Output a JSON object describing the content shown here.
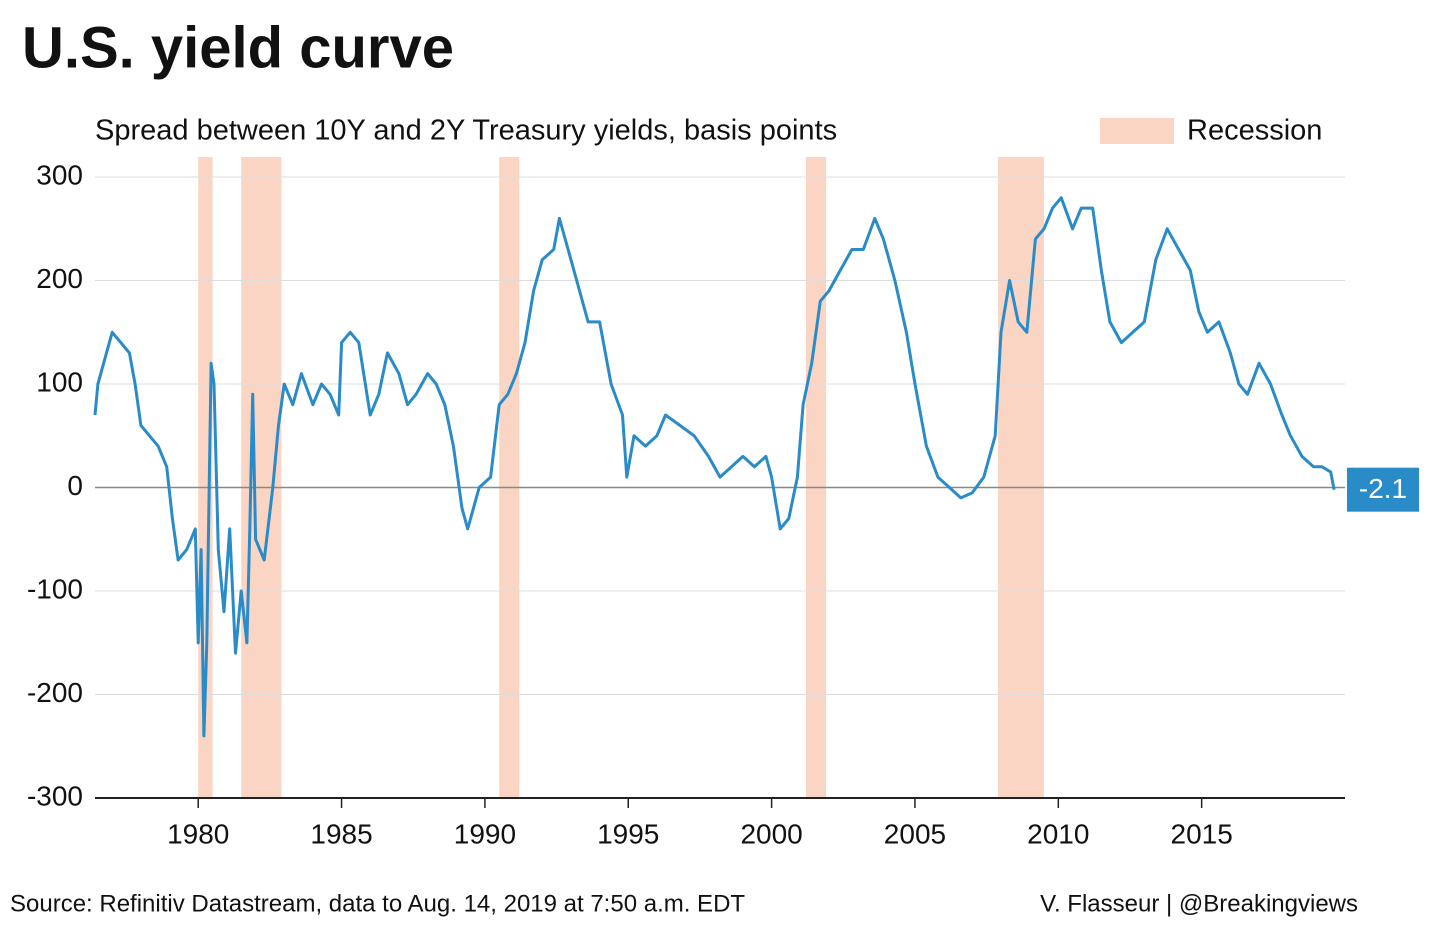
{
  "chart_data": {
    "type": "line",
    "title": "U.S. yield curve",
    "subtitle": "Spread between 10Y and 2Y Treasury yields, basis points",
    "source": "Source: Refinitiv Datastream, data to Aug. 14, 2019 at 7:50 a.m. EDT",
    "credit": "V. Flasseur | @Breakingviews",
    "color": "#2a8bc9",
    "band_label": "Recession",
    "band_color": "#fad5c4",
    "bands": [
      {
        "start": 1980.0,
        "end": 1980.5
      },
      {
        "start": 1981.5,
        "end": 1982.9
      },
      {
        "start": 1990.5,
        "end": 1991.2
      },
      {
        "start": 2001.2,
        "end": 2001.9
      },
      {
        "start": 2007.9,
        "end": 2009.5
      }
    ],
    "xlim": [
      1976.4,
      2020
    ],
    "xticks": [
      1980,
      1985,
      1990,
      1995,
      2000,
      2005,
      2010,
      2015
    ],
    "ylim": [
      -300,
      300
    ],
    "yticks": [
      -300,
      -200,
      -100,
      0,
      100,
      200,
      300
    ],
    "grid": true,
    "x": [
      1976.4,
      1976.5,
      1976.8,
      1977.0,
      1977.3,
      1977.6,
      1977.8,
      1978.0,
      1978.3,
      1978.6,
      1978.9,
      1979.1,
      1979.3,
      1979.6,
      1979.9,
      1980.0,
      1980.1,
      1980.2,
      1980.3,
      1980.45,
      1980.55,
      1980.7,
      1980.9,
      1981.1,
      1981.3,
      1981.5,
      1981.7,
      1981.8,
      1981.9,
      1982.0,
      1982.3,
      1982.6,
      1982.8,
      1983.0,
      1983.3,
      1983.6,
      1984.0,
      1984.3,
      1984.6,
      1984.9,
      1985.0,
      1985.3,
      1985.6,
      1986.0,
      1986.3,
      1986.6,
      1987.0,
      1987.3,
      1987.6,
      1988.0,
      1988.3,
      1988.6,
      1988.9,
      1989.2,
      1989.4,
      1989.8,
      1990.2,
      1990.5,
      1990.8,
      1991.1,
      1991.4,
      1991.7,
      1992.0,
      1992.4,
      1992.6,
      1992.9,
      1993.2,
      1993.6,
      1994.0,
      1994.4,
      1994.8,
      1994.95,
      1995.2,
      1995.6,
      1996.0,
      1996.3,
      1996.8,
      1997.3,
      1997.8,
      1998.2,
      1998.6,
      1999.0,
      1999.4,
      1999.8,
      2000.0,
      2000.3,
      2000.6,
      2000.9,
      2001.1,
      2001.4,
      2001.7,
      2002.0,
      2002.4,
      2002.8,
      2003.2,
      2003.6,
      2003.9,
      2004.3,
      2004.7,
      2005.0,
      2005.4,
      2005.8,
      2006.2,
      2006.6,
      2007.0,
      2007.4,
      2007.8,
      2008.0,
      2008.3,
      2008.6,
      2008.9,
      2009.2,
      2009.5,
      2009.8,
      2010.1,
      2010.5,
      2010.8,
      2011.2,
      2011.5,
      2011.8,
      2012.2,
      2012.6,
      2013.0,
      2013.4,
      2013.8,
      2014.2,
      2014.6,
      2014.9,
      2015.2,
      2015.6,
      2016.0,
      2016.3,
      2016.6,
      2017.0,
      2017.4,
      2017.8,
      2018.1,
      2018.5,
      2018.9,
      2019.2,
      2019.5,
      2019.62
    ],
    "values": [
      70,
      100,
      130,
      150,
      140,
      130,
      100,
      60,
      50,
      40,
      20,
      -30,
      -70,
      -60,
      -40,
      -150,
      -60,
      -240,
      -150,
      120,
      100,
      -60,
      -120,
      -40,
      -160,
      -100,
      -150,
      -40,
      90,
      -50,
      -70,
      0,
      60,
      100,
      80,
      110,
      80,
      100,
      90,
      70,
      140,
      150,
      140,
      70,
      90,
      130,
      110,
      80,
      90,
      110,
      100,
      80,
      40,
      -20,
      -40,
      0,
      10,
      80,
      90,
      110,
      140,
      190,
      220,
      230,
      260,
      230,
      200,
      160,
      160,
      100,
      70,
      10,
      50,
      40,
      50,
      70,
      60,
      50,
      30,
      10,
      20,
      30,
      20,
      30,
      10,
      -40,
      -30,
      10,
      80,
      120,
      180,
      190,
      210,
      230,
      230,
      260,
      240,
      200,
      150,
      100,
      40,
      10,
      0,
      -10,
      -5,
      10,
      50,
      150,
      200,
      160,
      150,
      240,
      250,
      270,
      280,
      250,
      270,
      270,
      210,
      160,
      140,
      150,
      160,
      220,
      250,
      230,
      210,
      170,
      150,
      160,
      130,
      100,
      90,
      120,
      100,
      70,
      50,
      30,
      20,
      20,
      15,
      -2.1
    ]
  }
}
